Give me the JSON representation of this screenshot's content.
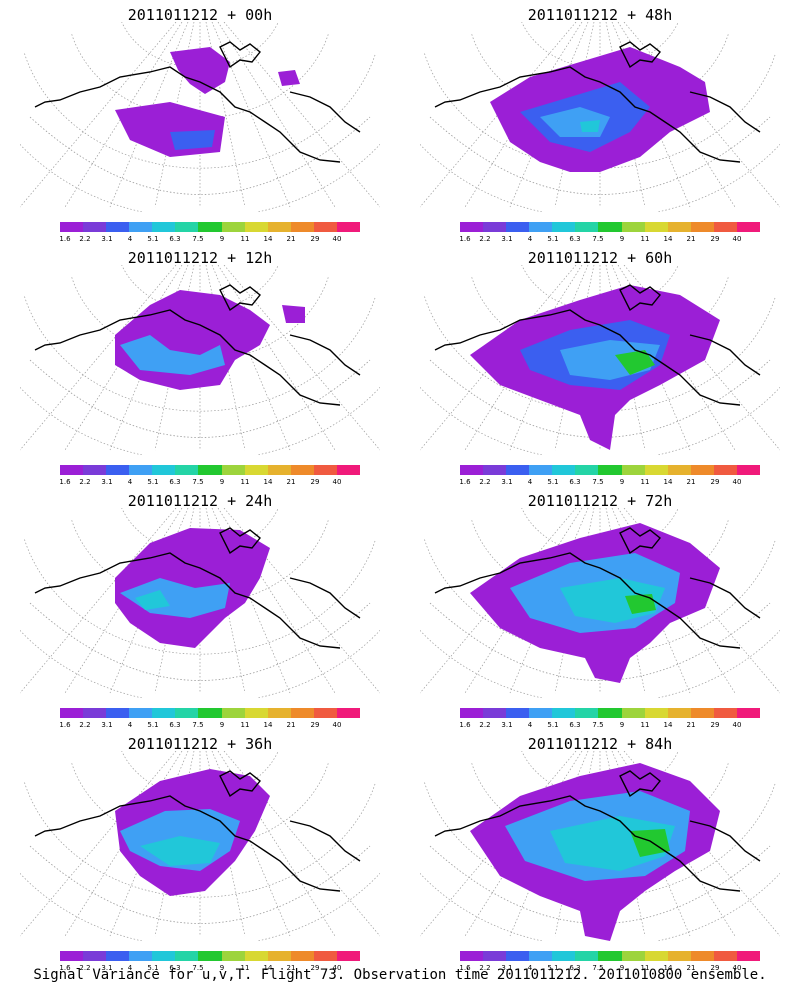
{
  "colorbar": {
    "colors": [
      "#9b1fd6",
      "#7a3bd8",
      "#3b5ff0",
      "#3fa0f4",
      "#21c7d9",
      "#24d4a6",
      "#22c830",
      "#9dd43c",
      "#d8d832",
      "#e6b22e",
      "#ee8a2a",
      "#f05a40",
      "#f01a7a"
    ],
    "labels": [
      "1.6",
      "2.2",
      "3.1",
      "4",
      "5.1",
      "6.3",
      "7.5",
      "9",
      "11",
      "14",
      "21",
      "29",
      "40"
    ]
  },
  "panels": [
    {
      "title": "2011011212 + 00h",
      "col": 0,
      "row": 0,
      "icon": "forecast-00h-map"
    },
    {
      "title": "2011011212 + 48h",
      "col": 1,
      "row": 0,
      "icon": "forecast-48h-map"
    },
    {
      "title": "2011011212 + 12h",
      "col": 0,
      "row": 1,
      "icon": "forecast-12h-map"
    },
    {
      "title": "2011011212 + 60h",
      "col": 1,
      "row": 1,
      "icon": "forecast-60h-map"
    },
    {
      "title": "2011011212 + 24h",
      "col": 0,
      "row": 2,
      "icon": "forecast-24h-map"
    },
    {
      "title": "2011011212 + 72h",
      "col": 1,
      "row": 2,
      "icon": "forecast-72h-map"
    },
    {
      "title": "2011011212 + 36h",
      "col": 0,
      "row": 3,
      "icon": "forecast-36h-map"
    },
    {
      "title": "2011011212 + 84h",
      "col": 1,
      "row": 3,
      "icon": "forecast-84h-map"
    }
  ],
  "caption": "Signal Variance for u,v,T. Flight 73. Observation time 2011011212. 2011010800 ensemble."
}
